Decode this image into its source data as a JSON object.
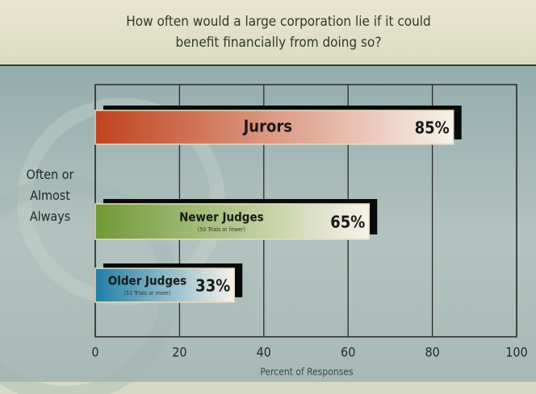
{
  "chart_data": {
    "type": "bar",
    "orientation": "horizontal",
    "title": "How often would a large corporation lie if it could benefit financially from doing so?",
    "y_label": "Often or Almost Always",
    "x_label": "Percent of Responses",
    "categories": [
      "Jurors",
      "Newer Judges",
      "Older Judges"
    ],
    "category_notes": [
      null,
      "(50 Trials or fewer)",
      "(51 Trials or more)"
    ],
    "values": [
      85,
      65,
      33
    ],
    "value_labels": [
      "85%",
      "65%",
      "33%"
    ],
    "colors": [
      "#c0431f",
      "#6f9a35",
      "#1f7fa6"
    ],
    "xlim": [
      0,
      100
    ],
    "xticks": [
      0,
      20,
      40,
      60,
      80,
      100
    ],
    "grid": true
  }
}
